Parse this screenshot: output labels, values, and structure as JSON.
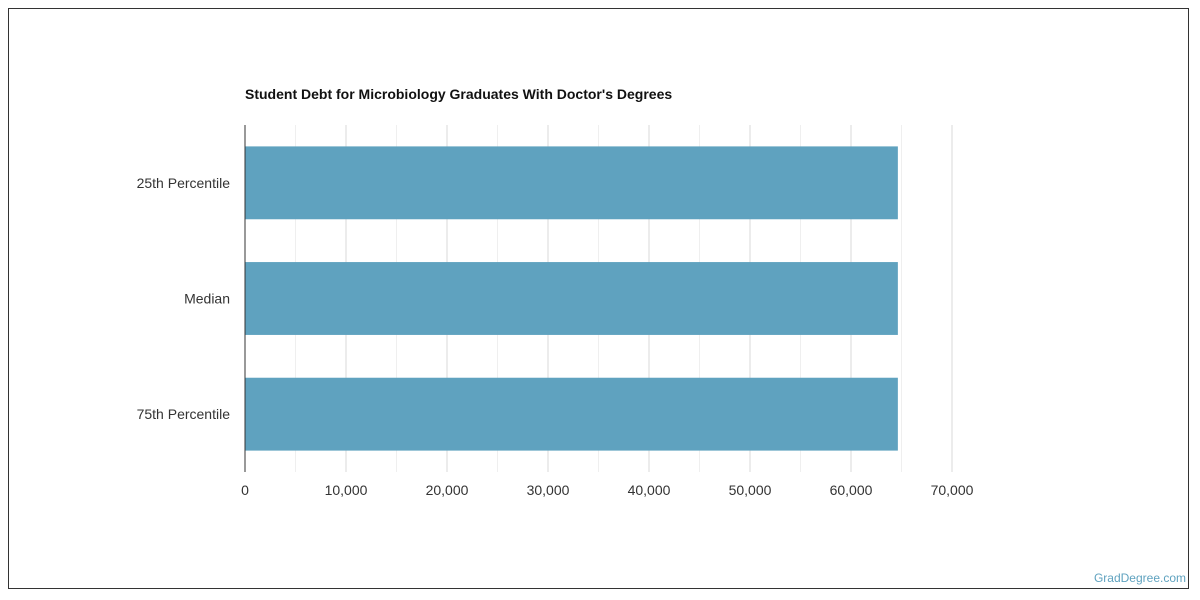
{
  "chart_data": {
    "type": "bar",
    "orientation": "horizontal",
    "title": "Student Debt for Microbiology Graduates With Doctor's Degrees",
    "categories": [
      "25th Percentile",
      "Median",
      "75th Percentile"
    ],
    "values": [
      64640,
      64640,
      64640
    ],
    "xlabel": "",
    "ylabel": "",
    "xlim": [
      0,
      70000
    ],
    "x_ticks": [
      0,
      10000,
      20000,
      30000,
      40000,
      50000,
      60000,
      70000
    ],
    "x_tick_labels": [
      "0",
      "10,000",
      "20,000",
      "30,000",
      "40,000",
      "50,000",
      "60,000",
      "70,000"
    ],
    "grid": true,
    "legend": "none",
    "bar_color": "#5fa2bf"
  },
  "credit": "GradDegree.com"
}
